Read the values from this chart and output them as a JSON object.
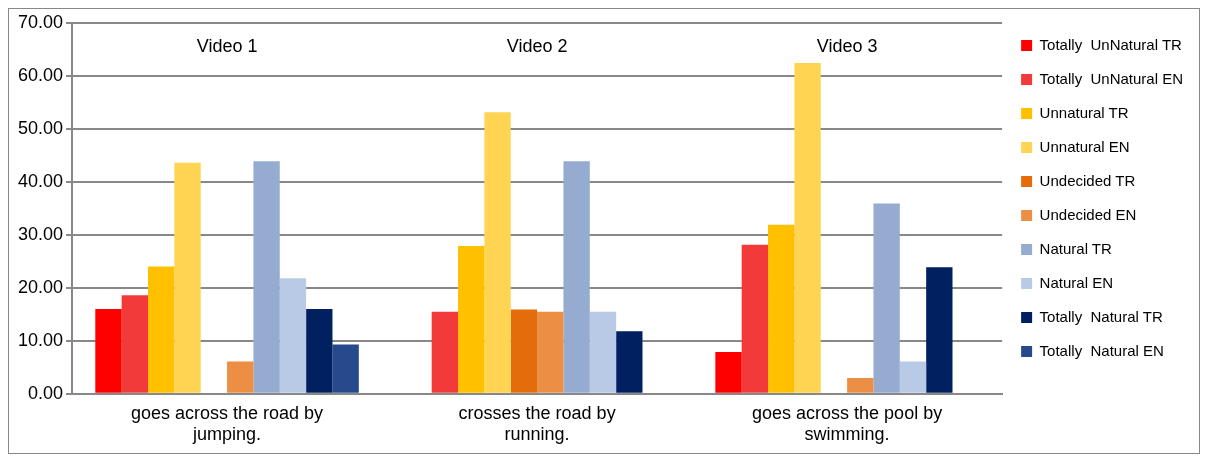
{
  "chart_data": {
    "type": "bar",
    "categories": [
      "goes across the road by jumping.",
      "crosses the road by running.",
      "goes across the pool by swimming."
    ],
    "series": [
      {
        "name": "Totally  UnNatural TR",
        "color": "#ff0000",
        "values": [
          16,
          0,
          7.9
        ]
      },
      {
        "name": "Totally  UnNatural EN",
        "color": "#f23a3a",
        "values": [
          18.6,
          15.5,
          28.1
        ]
      },
      {
        "name": "Unnatural TR",
        "color": "#ffc000",
        "values": [
          24,
          27.9,
          31.9
        ]
      },
      {
        "name": "Unnatural EN",
        "color": "#ffd452",
        "values": [
          43.6,
          53.1,
          62.4
        ]
      },
      {
        "name": "Undecided TR",
        "color": "#e46c0a",
        "values": [
          0,
          15.9,
          0
        ]
      },
      {
        "name": "Undecided EN",
        "color": "#ec8f45",
        "values": [
          6.1,
          15.5,
          3
        ]
      },
      {
        "name": "Natural TR",
        "color": "#95abd0",
        "values": [
          43.9,
          43.9,
          35.9
        ]
      },
      {
        "name": "Natural EN",
        "color": "#b9cae6",
        "values": [
          21.8,
          15.5,
          6.1
        ]
      },
      {
        "name": "Totally  Natural TR",
        "color": "#002060",
        "values": [
          16,
          11.8,
          23.9
        ]
      },
      {
        "name": "Totally  Natural EN",
        "color": "#264a8c",
        "values": [
          9.3,
          0,
          0
        ]
      }
    ],
    "ylim": [
      0,
      70
    ],
    "yticks": [
      {
        "value": 0,
        "label": "0.00"
      },
      {
        "value": 10,
        "label": "10.00"
      },
      {
        "value": 20,
        "label": "20.00"
      },
      {
        "value": 30,
        "label": "30.00"
      },
      {
        "value": 40,
        "label": "40.00"
      },
      {
        "value": 50,
        "label": "50.00"
      },
      {
        "value": 60,
        "label": "60.00"
      },
      {
        "value": 70,
        "label": "70.00"
      }
    ],
    "grid": "y",
    "legend": "right",
    "annotations": [
      "Video 1",
      "Video 2",
      "Video 3"
    ]
  }
}
